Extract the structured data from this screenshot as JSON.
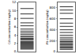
{
  "chart_data": [
    {
      "type": "scatter",
      "marker": "line-ew",
      "color": "#000000",
      "y_label": "Cd concentration (ng/kg)",
      "values": [
        10.5,
        9.2,
        8.1,
        7.0,
        6.3,
        5.5,
        5.0,
        4.6,
        4.2,
        3.8,
        3.5,
        3.2,
        3.0,
        2.7,
        2.4,
        2.2,
        2.0,
        1.8,
        1.6,
        1.4,
        1.2,
        1.0,
        0.8,
        0.6
      ],
      "ylim": [
        0,
        12
      ],
      "yticks": [
        0,
        2,
        4,
        6,
        8,
        10,
        12
      ],
      "tick_labels": "y"
    },
    {
      "type": "scatter",
      "marker": "line-ew",
      "color": "#000000",
      "y_label": "Pb concentration (ng/kg)",
      "values": [
        820,
        760,
        700,
        600,
        520,
        460,
        400,
        350,
        300,
        260,
        230,
        200,
        180,
        160,
        140,
        120,
        100,
        80,
        60,
        40
      ],
      "ylim": [
        0,
        900
      ],
      "yticks": [
        0,
        200,
        400,
        600,
        800
      ],
      "tick_labels": "y"
    }
  ]
}
